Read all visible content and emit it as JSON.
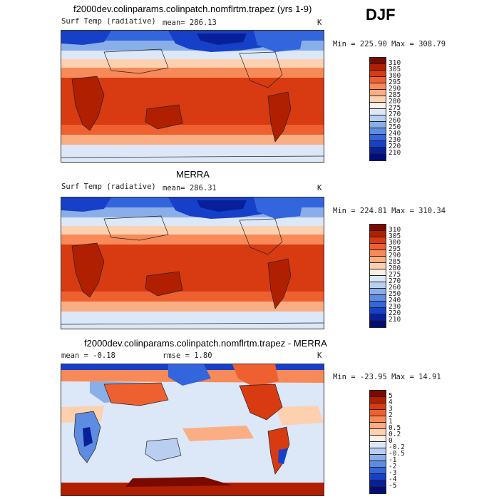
{
  "season": "DJF",
  "panels": [
    {
      "title": "f2000dev.colinparams.colinpatch.nomflrtm.trapez (yrs 1-9)",
      "left_label": "Surf Temp (radiative)",
      "mid_label": "mean=  286.13",
      "right_label": "K",
      "stats": "Min = 225.90  Max = 308.79",
      "colorbar_ticks": [
        "310",
        "305",
        "300",
        "295",
        "290",
        "285",
        "280",
        "275",
        "270",
        "260",
        "250",
        "240",
        "230",
        "220",
        "210"
      ]
    },
    {
      "title": "MERRA",
      "left_label": "Surf Temp (radiative)",
      "mid_label": "mean=  286.31",
      "right_label": "K",
      "stats": "Min = 224.81  Max = 310.34",
      "colorbar_ticks": [
        "310",
        "305",
        "300",
        "295",
        "290",
        "285",
        "280",
        "275",
        "270",
        "260",
        "250",
        "240",
        "230",
        "220",
        "210"
      ]
    },
    {
      "title": "f2000dev.colinparams.colinpatch.nomflrtm.trapez - MERRA",
      "left_label": "mean =   -0.18",
      "mid_label": "rmse =    1.80",
      "right_label": "K",
      "stats": "Min = -23.95  Max =   14.91",
      "colorbar_ticks": [
        "5",
        "4",
        "3",
        "2",
        "1",
        "0.5",
        "0.2",
        "0",
        "-0.2",
        "-0.5",
        "-1",
        "-2",
        "-3",
        "-4",
        "-5"
      ]
    }
  ],
  "colors": {
    "abs_scale": [
      "#7a0a00",
      "#b02000",
      "#d83a12",
      "#ee6030",
      "#f78a58",
      "#fbae84",
      "#fdd0b0",
      "#fff0e6",
      "#dce8f8",
      "#b8cff2",
      "#8aaee8",
      "#5d8ce0",
      "#3366dd",
      "#1640c8",
      "#07209a",
      "#000c78"
    ],
    "diff_scale": [
      "#7a0a00",
      "#b02000",
      "#d83a12",
      "#ee6030",
      "#f78a58",
      "#fbae84",
      "#fdd0b0",
      "#fff0e6",
      "#dce8f8",
      "#b8cff2",
      "#8aaee8",
      "#5d8ce0",
      "#3366dd",
      "#1640c8",
      "#07209a",
      "#000c78"
    ]
  }
}
